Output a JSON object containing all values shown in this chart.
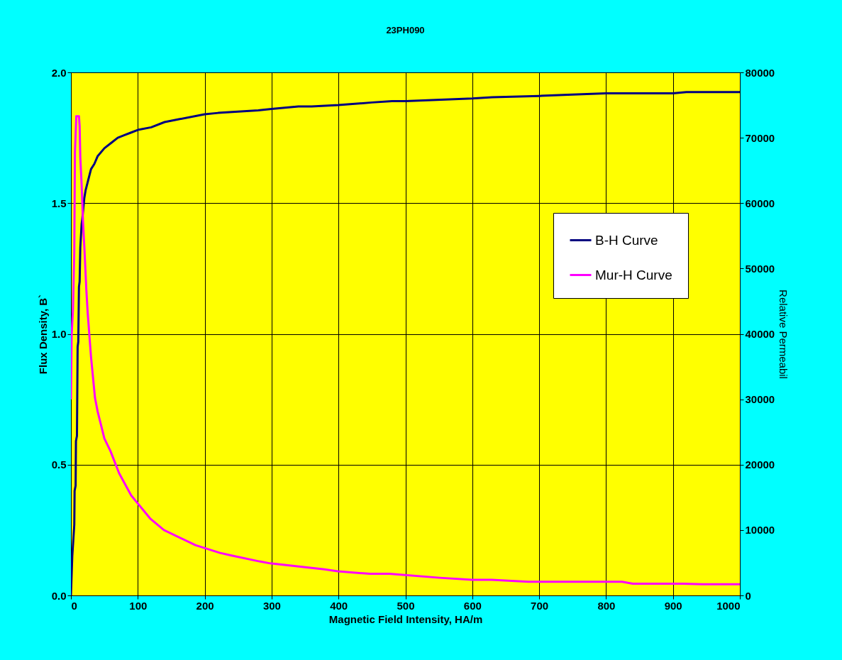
{
  "chart_data": {
    "type": "line",
    "title": "23PH090",
    "xlabel": "Magnetic Field Intensity, HA/m",
    "ylabel": "Flux Density, B`",
    "y2label": "Relative Permeabil",
    "xlim": [
      0,
      1000
    ],
    "xticks": [
      0,
      100,
      200,
      300,
      400,
      500,
      600,
      700,
      800,
      900,
      1000
    ],
    "ylim": [
      0,
      2
    ],
    "yticks": [
      {
        "value": 0,
        "label": "0.0"
      },
      {
        "value": 0.5,
        "label": "0.5"
      },
      {
        "value": 1,
        "label": "1.0"
      },
      {
        "value": 1.5,
        "label": "1.5"
      },
      {
        "value": 2,
        "label": "2.0"
      }
    ],
    "y2lim": [
      0,
      80000
    ],
    "y2ticks": [
      0,
      10000,
      20000,
      30000,
      40000,
      50000,
      60000,
      70000,
      80000
    ],
    "grid": true,
    "legend": "right",
    "series": [
      {
        "name": "B-H Curve",
        "color": "#000080",
        "x": [
          0,
          2,
          5,
          5.5,
          7,
          7.5,
          9,
          10,
          11,
          12,
          13,
          14,
          16,
          17,
          20,
          22,
          25,
          30,
          35,
          40,
          50,
          60,
          70,
          80,
          90,
          100,
          120,
          140,
          160,
          200,
          220,
          250,
          280,
          300,
          340,
          360,
          400,
          450,
          480,
          500,
          600,
          630,
          700,
          750,
          800,
          900,
          920,
          1000
        ],
        "values": [
          0,
          0.15,
          0.27,
          0.4,
          0.42,
          0.59,
          0.61,
          0.95,
          0.97,
          1.18,
          1.2,
          1.33,
          1.42,
          1.44,
          1.52,
          1.55,
          1.58,
          1.63,
          1.65,
          1.68,
          1.71,
          1.73,
          1.75,
          1.76,
          1.77,
          1.78,
          1.79,
          1.81,
          1.82,
          1.84,
          1.845,
          1.85,
          1.855,
          1.86,
          1.87,
          1.87,
          1.875,
          1.885,
          1.89,
          1.89,
          1.9,
          1.905,
          1.91,
          1.915,
          1.92,
          1.92,
          1.925,
          1.925
        ]
      },
      {
        "name": "Mur-H Curve",
        "color": "#ff00ff",
        "axis": "y2",
        "x": [
          0,
          1,
          3,
          5,
          6,
          8,
          12,
          13,
          14,
          16,
          18,
          20,
          23,
          25,
          30,
          36,
          40,
          50,
          59,
          72,
          90,
          119,
          139,
          186,
          223,
          240,
          282,
          298,
          379,
          399,
          447,
          476,
          551,
          600,
          629,
          684,
          824,
          840,
          915,
          944,
          1000
        ],
        "values": [
          30000,
          39700,
          43600,
          52500,
          67800,
          73300,
          73300,
          71800,
          67000,
          62800,
          57300,
          53400,
          46800,
          43300,
          36500,
          30200,
          28100,
          24000,
          22100,
          18700,
          15300,
          11700,
          10000,
          7700,
          6500,
          6100,
          5200,
          4900,
          4000,
          3700,
          3300,
          3300,
          2700,
          2400,
          2400,
          2100,
          2100,
          1800,
          1800,
          1700,
          1700
        ]
      }
    ]
  }
}
